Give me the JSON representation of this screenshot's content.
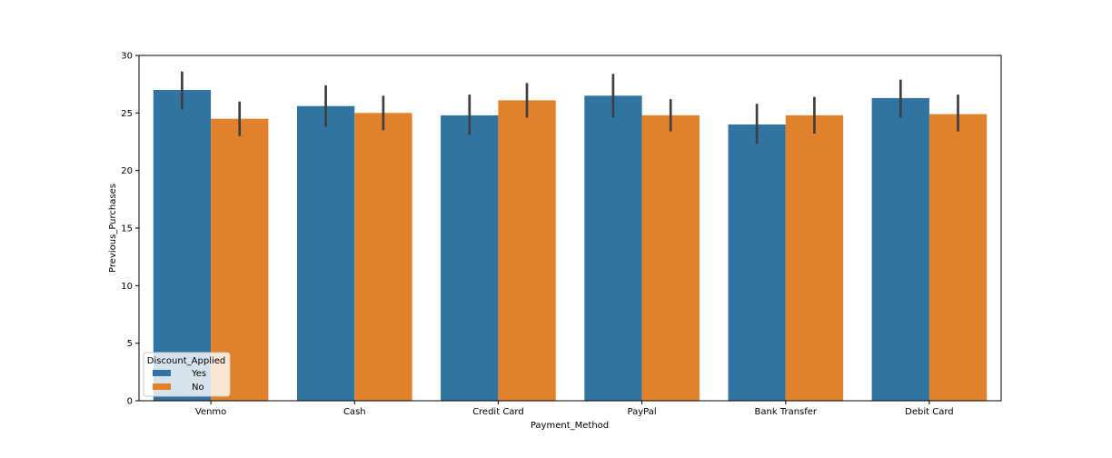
{
  "chart_data": {
    "type": "bar",
    "categories": [
      "Venmo",
      "Cash",
      "Credit Card",
      "PayPal",
      "Bank Transfer",
      "Debit Card"
    ],
    "series": [
      {
        "name": "Yes",
        "color": "#3274a1",
        "values": [
          27.0,
          25.6,
          24.8,
          26.5,
          24.0,
          26.3
        ],
        "ci_low": [
          25.3,
          23.8,
          23.1,
          24.6,
          22.3,
          24.6
        ],
        "ci_high": [
          28.6,
          27.4,
          26.6,
          28.4,
          25.8,
          27.9
        ]
      },
      {
        "name": "No",
        "color": "#e1812c",
        "values": [
          24.5,
          25.0,
          26.1,
          24.8,
          24.8,
          24.9
        ],
        "ci_low": [
          23.0,
          23.5,
          24.6,
          23.4,
          23.2,
          23.4
        ],
        "ci_high": [
          26.0,
          26.5,
          27.6,
          26.2,
          26.4,
          26.6
        ]
      }
    ],
    "xlabel": "Payment_Method",
    "ylabel": "Previous_Purchases",
    "ylim": [
      0,
      30
    ],
    "yticks": [
      0,
      5,
      10,
      15,
      20,
      25,
      30
    ],
    "legend": {
      "title": "Discount_Applied",
      "placement": "lower-left"
    },
    "grid": false
  }
}
